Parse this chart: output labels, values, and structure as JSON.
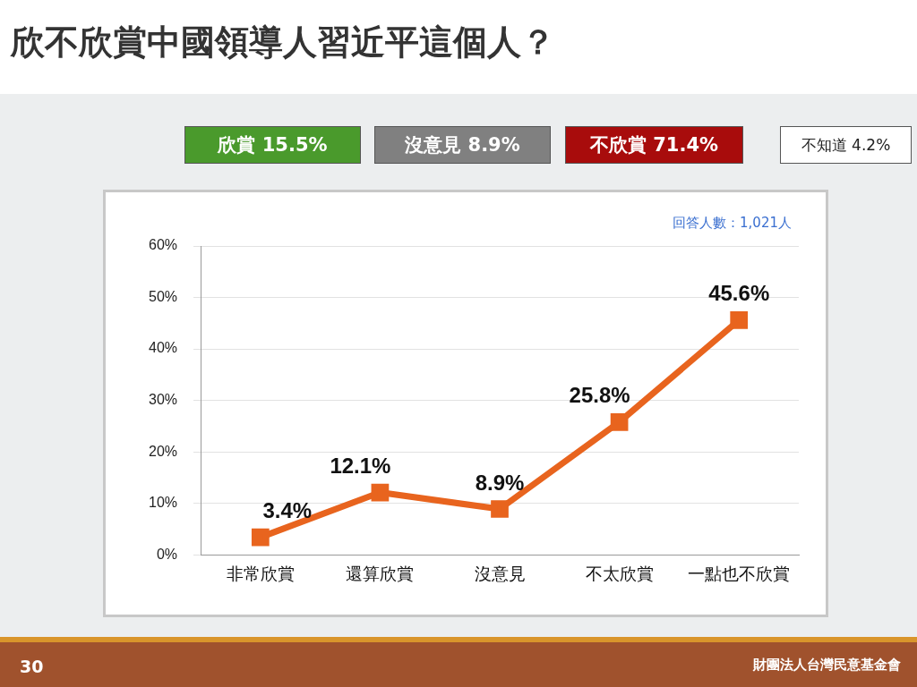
{
  "chart_data": {
    "type": "line",
    "title": "欣不欣賞中國領導人習近平這個人？",
    "categories": [
      "非常欣賞",
      "還算欣賞",
      "沒意見",
      "不太欣賞",
      "一點也不欣賞"
    ],
    "series": [
      {
        "color": "#e8641e",
        "values": [
          3.4,
          12.1,
          8.9,
          25.8,
          45.6
        ],
        "value_labels": [
          "3.4%",
          "12.1%",
          "8.9%",
          "25.8%",
          "45.6%"
        ]
      }
    ],
    "ylim": [
      0,
      60
    ],
    "yticks": [
      {
        "value": 0,
        "label": "0%"
      },
      {
        "value": 10,
        "label": "10%"
      },
      {
        "value": 20,
        "label": "20%"
      },
      {
        "value": 30,
        "label": "30%"
      },
      {
        "value": 40,
        "label": "40%"
      },
      {
        "value": 50,
        "label": "50%"
      },
      {
        "value": 60,
        "label": "60%"
      }
    ],
    "grid": "y",
    "legend": false,
    "marker": "square",
    "line_style": "solid",
    "annotations": [
      "欣賞 15.5%",
      "沒意見 8.9%",
      "不欣賞 71.4%",
      "不知道 4.2%",
      "回答人數：1,021人",
      "30",
      "財團法人台灣民意基金會"
    ]
  }
}
